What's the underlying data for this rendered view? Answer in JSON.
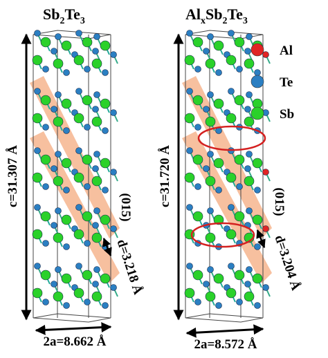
{
  "panels": [
    {
      "title": {
        "parts": [
          "Sb",
          "2",
          "Te",
          "3"
        ]
      },
      "c_label": "c=31.307 Å",
      "plane_label": "(015)",
      "d_label": "d=3.218 Å",
      "a_label": "2a=8.662 Å"
    },
    {
      "title": {
        "parts": [
          "Al",
          "x",
          "Sb",
          "2",
          "Te",
          "3"
        ]
      },
      "c_label": "c=31.720 Å",
      "plane_label": "(015)",
      "d_label": "d=3.204 Å",
      "a_label": "2a=8.572 Å"
    }
  ],
  "legend": [
    {
      "label": "Al",
      "color": "#e02525"
    },
    {
      "label": "Te",
      "color": "#2b7fc2"
    },
    {
      "label": "Sb",
      "color": "#2ad12a"
    }
  ]
}
